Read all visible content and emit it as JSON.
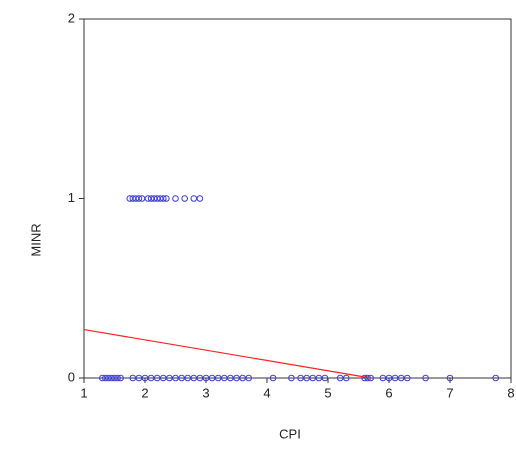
{
  "chart_data": {
    "type": "scatter",
    "x_label": "CPI",
    "y_label": "MINR",
    "x": [
      1.75,
      1.8,
      1.85,
      1.9,
      1.95,
      2.05,
      2.1,
      2.15,
      2.2,
      2.25,
      2.3,
      2.35,
      2.5,
      2.65,
      2.8,
      2.9,
      1.3,
      1.35,
      1.4,
      1.45,
      1.5,
      1.55,
      1.6,
      1.8,
      1.9,
      2.0,
      2.1,
      2.2,
      2.3,
      2.4,
      2.5,
      2.6,
      2.7,
      2.8,
      2.9,
      3.0,
      3.1,
      3.2,
      3.3,
      3.4,
      3.5,
      3.6,
      3.7,
      4.1,
      4.4,
      4.55,
      4.65,
      4.75,
      4.85,
      4.95,
      5.2,
      5.3,
      5.6,
      5.65,
      5.7,
      5.9,
      6.0,
      6.1,
      6.2,
      6.3,
      6.6,
      7.0,
      7.75
    ],
    "values": [
      1,
      1,
      1,
      1,
      1,
      1,
      1,
      1,
      1,
      1,
      1,
      1,
      1,
      1,
      1,
      1,
      0,
      0,
      0,
      0,
      0,
      0,
      0,
      0,
      0,
      0,
      0,
      0,
      0,
      0,
      0,
      0,
      0,
      0,
      0,
      0,
      0,
      0,
      0,
      0,
      0,
      0,
      0,
      0,
      0,
      0,
      0,
      0,
      0,
      0,
      0,
      0,
      0,
      0,
      0,
      0,
      0,
      0,
      0,
      0,
      0,
      0,
      0
    ],
    "color": "#3b3bd6",
    "fit_line": {
      "x": [
        1,
        5.7
      ],
      "values": [
        0.27,
        0
      ],
      "color": "#ff2020"
    },
    "xlim": [
      1,
      8
    ],
    "ylim": [
      0,
      2
    ],
    "xticks": [
      1,
      2,
      3,
      4,
      5,
      6,
      7,
      8
    ],
    "yticks": [
      0,
      1,
      2
    ]
  }
}
